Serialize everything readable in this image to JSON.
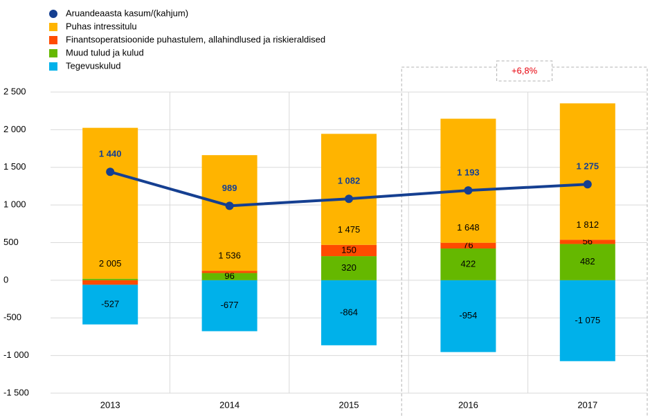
{
  "chart_data": {
    "type": "bar",
    "categories": [
      "2013",
      "2014",
      "2015",
      "2016",
      "2017"
    ],
    "series": [
      {
        "name": "Aruandeaasta kasum/(kahjum)",
        "type": "line",
        "color": "#153f91",
        "values": [
          1440,
          989,
          1082,
          1193,
          1275
        ],
        "value_labels": [
          "1 440",
          "989",
          "1 082",
          "1 193",
          "1 275"
        ]
      },
      {
        "name": "Puhas intressitulu",
        "color": "#ffb400",
        "values": [
          2005,
          1536,
          1475,
          1648,
          1812
        ],
        "value_labels": [
          "2 005",
          "1 536",
          "1 475",
          "1 648",
          "1 812"
        ]
      },
      {
        "name": "Finantsoperatsioonide puhastulem, allahindlused ja riskieraldised",
        "color": "#ff4b00",
        "values": [
          -60,
          30,
          150,
          76,
          56
        ],
        "value_labels": [
          null,
          null,
          "150",
          "76",
          "56"
        ]
      },
      {
        "name": "Muud tulud ja kulud",
        "color": "#65b800",
        "values": [
          20,
          96,
          320,
          422,
          482
        ],
        "value_labels": [
          null,
          "96",
          "320",
          "422",
          "482"
        ]
      },
      {
        "name": "Tegevuskulud",
        "color": "#00b1ea",
        "values": [
          -527,
          -677,
          -864,
          -954,
          -1075
        ],
        "value_labels": [
          "-527",
          "-677",
          "-864",
          "-954",
          "-1 075"
        ]
      }
    ],
    "stack_order": [
      3,
      2,
      1
    ],
    "ylim": [
      -1500,
      2500
    ],
    "yticks": [
      {
        "value": -1500,
        "label": "-1 500"
      },
      {
        "value": -1000,
        "label": "-1 000"
      },
      -500,
      0,
      500,
      {
        "value": 1000,
        "label": "1 000"
      },
      {
        "value": 1500,
        "label": "1 500"
      },
      {
        "value": 2000,
        "label": "2 000"
      },
      {
        "value": 2500,
        "label": "2 500"
      }
    ],
    "grid": true,
    "legend": "top-left",
    "annotation": {
      "text": "+6,8%",
      "color": "#e8000b",
      "from_category": 3
    }
  }
}
